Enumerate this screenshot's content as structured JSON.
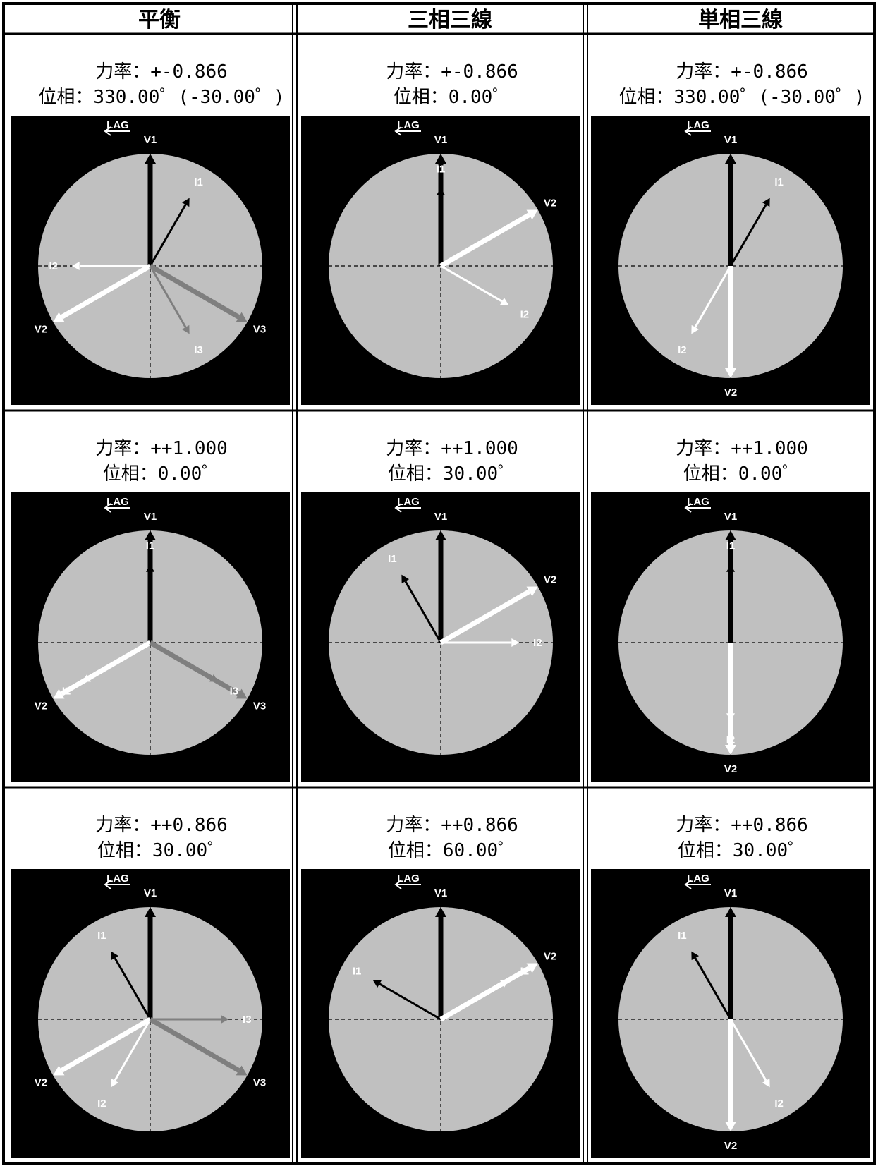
{
  "headers": [
    "平衡",
    "三相三線",
    "単相三線"
  ],
  "lag_label": "LAG",
  "panels": [
    {
      "pf": "力率：+-0.866",
      "phase": "位相：330.00゜(-30.00゜)",
      "vectors": [
        {
          "name": "V1",
          "type": "V",
          "color": "#000000",
          "angle": 90,
          "label": "V1"
        },
        {
          "name": "I1",
          "type": "I",
          "color": "#000000",
          "angle": 60,
          "label": "I1"
        },
        {
          "name": "V2",
          "type": "V",
          "color": "#ffffff",
          "angle": 210,
          "label": "V2"
        },
        {
          "name": "I2",
          "type": "I",
          "color": "#ffffff",
          "angle": 180,
          "label": "I2"
        },
        {
          "name": "V3",
          "type": "V",
          "color": "#7f7f7f",
          "angle": 330,
          "label": "V3"
        },
        {
          "name": "I3",
          "type": "I",
          "color": "#7f7f7f",
          "angle": 300,
          "label": "I3"
        }
      ]
    },
    {
      "pf": "力率：+-0.866",
      "phase": "位相：0.00゜",
      "vectors": [
        {
          "name": "V1",
          "type": "V",
          "color": "#000000",
          "angle": 90,
          "label": "V1"
        },
        {
          "name": "I1",
          "type": "I",
          "color": "#000000",
          "angle": 90,
          "label": "I1"
        },
        {
          "name": "V2",
          "type": "V",
          "color": "#ffffff",
          "angle": 30,
          "label": "V2"
        },
        {
          "name": "I2",
          "type": "I",
          "color": "#ffffff",
          "angle": 330,
          "label": "I2"
        }
      ]
    },
    {
      "pf": "力率：+-0.866",
      "phase": "位相：330.00゜(-30.00゜)",
      "vectors": [
        {
          "name": "V1",
          "type": "V",
          "color": "#000000",
          "angle": 90,
          "label": "V1"
        },
        {
          "name": "I1",
          "type": "I",
          "color": "#000000",
          "angle": 60,
          "label": "I1"
        },
        {
          "name": "V2",
          "type": "V",
          "color": "#ffffff",
          "angle": 270,
          "label": "V2"
        },
        {
          "name": "I2",
          "type": "I",
          "color": "#ffffff",
          "angle": 240,
          "label": "I2"
        }
      ]
    },
    {
      "pf": "力率：++1.000",
      "phase": "位相：0.00゜",
      "vectors": [
        {
          "name": "V1",
          "type": "V",
          "color": "#000000",
          "angle": 90,
          "label": "V1"
        },
        {
          "name": "I1",
          "type": "I",
          "color": "#000000",
          "angle": 90,
          "label": "I1"
        },
        {
          "name": "V2",
          "type": "V",
          "color": "#ffffff",
          "angle": 210,
          "label": "V2"
        },
        {
          "name": "I2",
          "type": "I",
          "color": "#ffffff",
          "angle": 210,
          "label": "I2"
        },
        {
          "name": "V3",
          "type": "V",
          "color": "#7f7f7f",
          "angle": 330,
          "label": "V3"
        },
        {
          "name": "I3",
          "type": "I",
          "color": "#7f7f7f",
          "angle": 330,
          "label": "I3"
        }
      ]
    },
    {
      "pf": "力率：++1.000",
      "phase": "位相：30.00゜",
      "vectors": [
        {
          "name": "V1",
          "type": "V",
          "color": "#000000",
          "angle": 90,
          "label": "V1"
        },
        {
          "name": "I1",
          "type": "I",
          "color": "#000000",
          "angle": 120,
          "label": "I1"
        },
        {
          "name": "V2",
          "type": "V",
          "color": "#ffffff",
          "angle": 30,
          "label": "V2"
        },
        {
          "name": "I2",
          "type": "I",
          "color": "#ffffff",
          "angle": 0,
          "label": "I2"
        }
      ]
    },
    {
      "pf": "力率：++1.000",
      "phase": "位相：0.00゜",
      "vectors": [
        {
          "name": "V1",
          "type": "V",
          "color": "#000000",
          "angle": 90,
          "label": "V1"
        },
        {
          "name": "I1",
          "type": "I",
          "color": "#000000",
          "angle": 90,
          "label": "I1"
        },
        {
          "name": "V2",
          "type": "V",
          "color": "#ffffff",
          "angle": 270,
          "label": "V2"
        },
        {
          "name": "I2",
          "type": "I",
          "color": "#ffffff",
          "angle": 270,
          "label": "I2"
        }
      ]
    },
    {
      "pf": "力率：++0.866",
      "phase": "位相：30.00゜",
      "vectors": [
        {
          "name": "V1",
          "type": "V",
          "color": "#000000",
          "angle": 90,
          "label": "V1"
        },
        {
          "name": "I1",
          "type": "I",
          "color": "#000000",
          "angle": 120,
          "label": "I1"
        },
        {
          "name": "V2",
          "type": "V",
          "color": "#ffffff",
          "angle": 210,
          "label": "V2"
        },
        {
          "name": "I2",
          "type": "I",
          "color": "#ffffff",
          "angle": 240,
          "label": "I2"
        },
        {
          "name": "V3",
          "type": "V",
          "color": "#7f7f7f",
          "angle": 330,
          "label": "V3"
        },
        {
          "name": "I3",
          "type": "I",
          "color": "#7f7f7f",
          "angle": 0,
          "label": "I3"
        }
      ]
    },
    {
      "pf": "力率：++0.866",
      "phase": "位相：60.00゜",
      "vectors": [
        {
          "name": "V1",
          "type": "V",
          "color": "#000000",
          "angle": 90,
          "label": "V1"
        },
        {
          "name": "I1",
          "type": "I",
          "color": "#000000",
          "angle": 150,
          "label": "I1"
        },
        {
          "name": "V2",
          "type": "V",
          "color": "#ffffff",
          "angle": 30,
          "label": "V2"
        },
        {
          "name": "I2",
          "type": "I",
          "color": "#ffffff",
          "angle": 30,
          "label": "I2"
        }
      ]
    },
    {
      "pf": "力率：++0.866",
      "phase": "位相：30.00゜",
      "vectors": [
        {
          "name": "V1",
          "type": "V",
          "color": "#000000",
          "angle": 90,
          "label": "V1"
        },
        {
          "name": "I1",
          "type": "I",
          "color": "#000000",
          "angle": 120,
          "label": "I1"
        },
        {
          "name": "V2",
          "type": "V",
          "color": "#ffffff",
          "angle": 270,
          "label": "V2"
        },
        {
          "name": "I2",
          "type": "I",
          "color": "#ffffff",
          "angle": 300,
          "label": "I2"
        }
      ]
    }
  ]
}
